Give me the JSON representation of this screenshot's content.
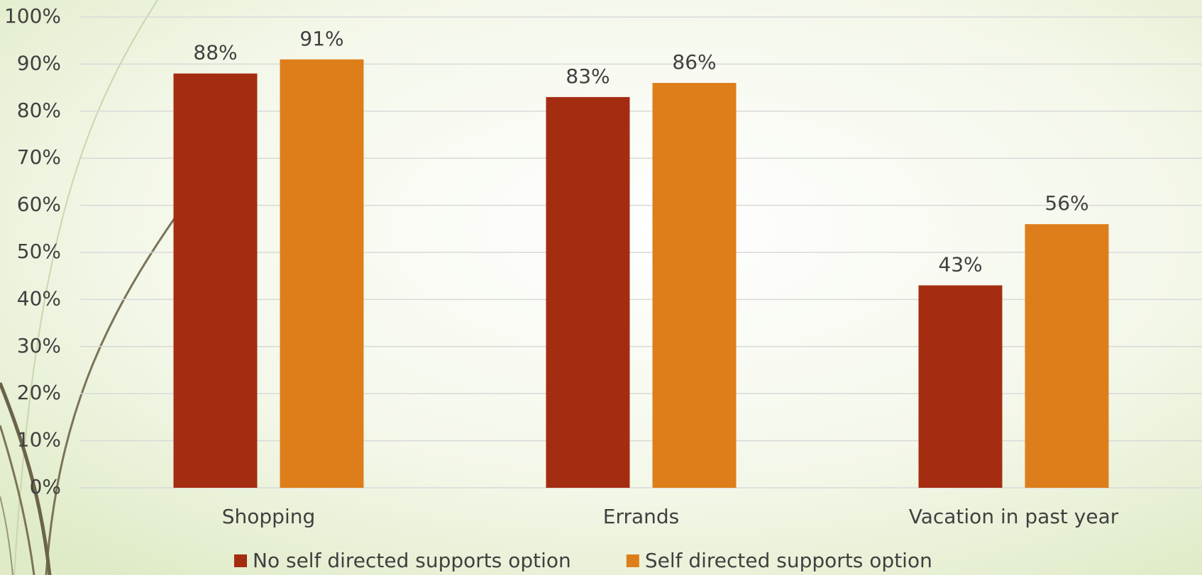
{
  "chart_data": {
    "type": "bar",
    "categories": [
      "Shopping",
      "Errands",
      "Vacation in past year"
    ],
    "series": [
      {
        "name": "No self directed supports option",
        "color": "#a42d11",
        "values": [
          88,
          83,
          43
        ],
        "value_labels": [
          "88%",
          "83%",
          "43%"
        ]
      },
      {
        "name": "Self directed supports option",
        "color": "#de7e1b",
        "values": [
          91,
          86,
          56
        ],
        "value_labels": [
          "91%",
          "86%",
          "56%"
        ]
      }
    ],
    "ylim": [
      0,
      100
    ],
    "yticks": [
      {
        "value": 0,
        "label": "0%"
      },
      {
        "value": 10,
        "label": "10%"
      },
      {
        "value": 20,
        "label": "20%"
      },
      {
        "value": 30,
        "label": "30%"
      },
      {
        "value": 40,
        "label": "40%"
      },
      {
        "value": 50,
        "label": "50%"
      },
      {
        "value": 60,
        "label": "60%"
      },
      {
        "value": 70,
        "label": "70%"
      },
      {
        "value": 80,
        "label": "80%"
      },
      {
        "value": 90,
        "label": "90%"
      },
      {
        "value": 100,
        "label": "100%"
      }
    ],
    "grid": true,
    "legend": "bottom"
  }
}
